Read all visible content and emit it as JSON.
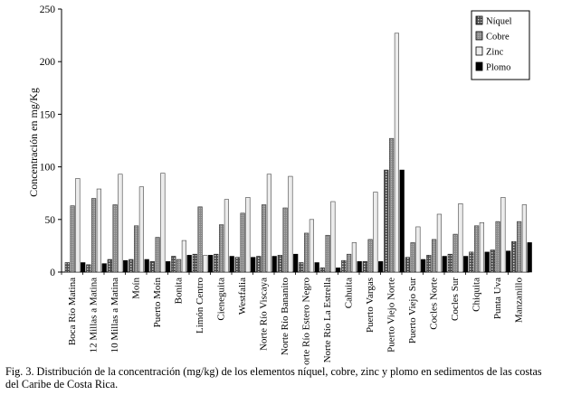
{
  "chart_data": {
    "type": "bar",
    "ylabel": "Concentración en mg/Kg",
    "xlabel": "",
    "ylim": [
      0,
      250
    ],
    "yticks": [
      0,
      50,
      100,
      150,
      200,
      250
    ],
    "legend_position": "top-right",
    "categories": [
      "Boca Río Matina",
      "12 Millas a Matina",
      "10 Millas a Matina",
      "Moín",
      "Puerto Moín",
      "Bonita",
      "Limón Centro",
      "Cieneguita",
      "Westfalia",
      "Norte Río Viscaya",
      "Norte Río Bananito",
      "Norte Río Estero Negro",
      "Norte Río La Estrella",
      "Cahuita",
      "Puerto Vargas",
      "Puerto Viejo Norte",
      "Puerto Viejo Sur",
      "Cocles Norte",
      "Cocles Sur",
      "Chiquita",
      "Punta Uva",
      "Manzanillo"
    ],
    "series": [
      {
        "name": "Níquel",
        "color": "#404040",
        "values": [
          9,
          7,
          12,
          12,
          10,
          15,
          17,
          17,
          14,
          15,
          16,
          9,
          4,
          11,
          10,
          97,
          14,
          16,
          17,
          19,
          21,
          29
        ]
      },
      {
        "name": "Cobre",
        "color": "#8c8c8c",
        "values": [
          63,
          70,
          64,
          44,
          33,
          12,
          62,
          45,
          56,
          64,
          61,
          37,
          35,
          17,
          31,
          127,
          28,
          31,
          36,
          44,
          48,
          48
        ]
      },
      {
        "name": "Zinc",
        "color": "#e6e6e6",
        "values": [
          89,
          79,
          93,
          81,
          94,
          30,
          16,
          69,
          71,
          93,
          91,
          50,
          67,
          28,
          76,
          227,
          43,
          55,
          65,
          47,
          71,
          64
        ]
      },
      {
        "name": "Plomo",
        "color": "#000000",
        "values": [
          9,
          8,
          11,
          12,
          10,
          16,
          16,
          15,
          14,
          15,
          17,
          9,
          4,
          10,
          10,
          97,
          12,
          15,
          15,
          19,
          20,
          28
        ]
      }
    ]
  },
  "caption": "Fig. 3. Distribución de la concentración (mg/kg) de los elementos níquel, cobre, zinc y plomo en sedimentos de las costas del Caribe de Costa Rica."
}
